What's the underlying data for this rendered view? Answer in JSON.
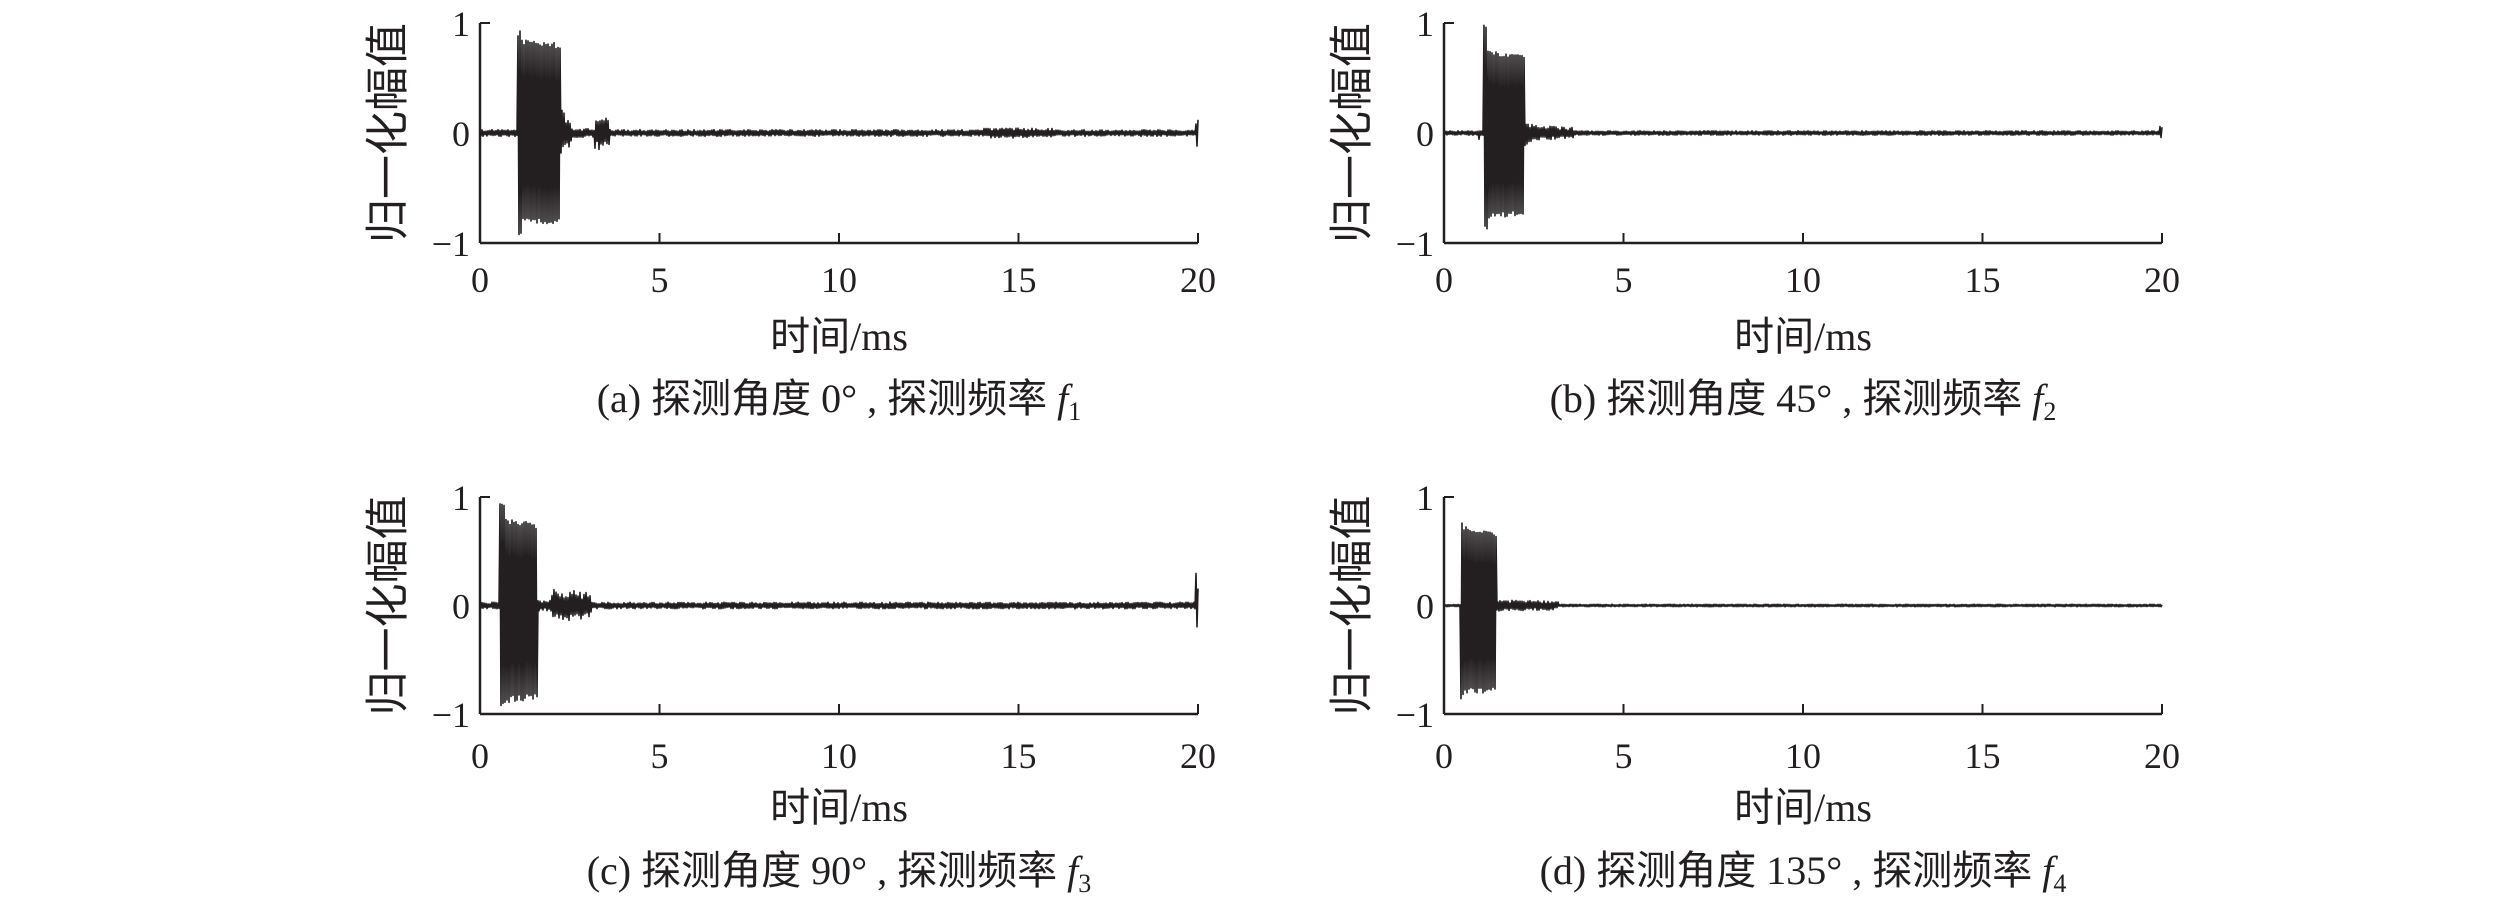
{
  "chart_data": [
    {
      "type": "line",
      "caption": {
        "text": "(a) 探测角度 0° , 探测频率 ",
        "symbol": "f",
        "subscript": "1"
      },
      "xlabel": "时间/ms",
      "ylabel": "归一化幅值",
      "xlim": [
        0,
        20
      ],
      "ylim": [
        -1,
        1
      ],
      "xticks": [
        0,
        5,
        10,
        15,
        20
      ],
      "xtick_labels": [
        "0",
        "5",
        "10",
        "15",
        "20"
      ],
      "yticks": [
        1,
        0,
        -1
      ],
      "ytick_labels": [
        "1",
        "0",
        "−1"
      ],
      "grid": false,
      "line_color": "#231f20",
      "series": [
        {
          "envelope": [
            {
              "t": [
                0,
                1.05
              ],
              "upper": [
                0.03,
                0.03
              ],
              "lower": [
                -0.03,
                -0.03
              ]
            },
            {
              "t": [
                1.05,
                1.16
              ],
              "upper": [
                0.95,
                0.92
              ],
              "lower": [
                -0.97,
                -0.9
              ]
            },
            {
              "t": [
                1.16,
                2.25
              ],
              "upper": [
                0.86,
                0.82
              ],
              "lower": [
                -0.83,
                -0.82
              ]
            },
            {
              "t": [
                2.25,
                2.55
              ],
              "upper": [
                0.22,
                0.1
              ],
              "lower": [
                -0.22,
                -0.1
              ]
            },
            {
              "t": [
                2.55,
                3.2
              ],
              "upper": [
                0.04,
                0.04
              ],
              "lower": [
                -0.04,
                -0.04
              ]
            },
            {
              "t": [
                3.2,
                3.6
              ],
              "upper": [
                0.16,
                0.14
              ],
              "lower": [
                -0.16,
                -0.14
              ]
            },
            {
              "t": [
                3.6,
                14
              ],
              "upper": [
                0.03,
                0.03
              ],
              "lower": [
                -0.03,
                -0.03
              ]
            },
            {
              "t": [
                14,
                16
              ],
              "upper": [
                0.045,
                0.045
              ],
              "lower": [
                -0.045,
                -0.045
              ]
            },
            {
              "t": [
                16,
                19.94
              ],
              "upper": [
                0.03,
                0.03
              ],
              "lower": [
                -0.03,
                -0.03
              ]
            },
            {
              "t": [
                19.94,
                20
              ],
              "upper": [
                0.15,
                0.15
              ],
              "lower": [
                -0.15,
                -0.15
              ]
            }
          ]
        }
      ]
    },
    {
      "type": "line",
      "caption": {
        "text": "(b) 探测角度 45° , 探测频率 ",
        "symbol": "f",
        "subscript": "2"
      },
      "xlabel": "时间/ms",
      "ylabel": "归一化幅值",
      "xlim": [
        0,
        20
      ],
      "ylim": [
        -1,
        1
      ],
      "xticks": [
        0,
        5,
        10,
        15,
        20
      ],
      "xtick_labels": [
        "0",
        "5",
        "10",
        "15",
        "20"
      ],
      "yticks": [
        1,
        0,
        -1
      ],
      "ytick_labels": [
        "1",
        "0",
        "−1"
      ],
      "grid": false,
      "line_color": "#231f20",
      "series": [
        {
          "envelope": [
            {
              "t": [
                0,
                0.95
              ],
              "upper": [
                0.02,
                0.02
              ],
              "lower": [
                -0.02,
                -0.02
              ]
            },
            {
              "t": [
                0.95,
                1.0
              ],
              "upper": [
                0.08,
                0.08
              ],
              "lower": [
                -0.08,
                -0.08
              ]
            },
            {
              "t": [
                1.0,
                1.1
              ],
              "upper": [
                0.02,
                0.02
              ],
              "lower": [
                -0.02,
                -0.02
              ]
            },
            {
              "t": [
                1.1,
                1.2
              ],
              "upper": [
                1.0,
                0.95
              ],
              "lower": [
                -0.9,
                -0.88
              ]
            },
            {
              "t": [
                1.2,
                2.25
              ],
              "upper": [
                0.75,
                0.72
              ],
              "lower": [
                -0.78,
                -0.75
              ]
            },
            {
              "t": [
                2.25,
                2.5
              ],
              "upper": [
                0.12,
                0.08
              ],
              "lower": [
                -0.12,
                -0.08
              ]
            },
            {
              "t": [
                2.5,
                3.6
              ],
              "upper": [
                0.07,
                0.05
              ],
              "lower": [
                -0.07,
                -0.05
              ]
            },
            {
              "t": [
                3.6,
                19.94
              ],
              "upper": [
                0.02,
                0.02
              ],
              "lower": [
                -0.02,
                -0.02
              ]
            },
            {
              "t": [
                19.94,
                20
              ],
              "upper": [
                0.06,
                0.06
              ],
              "lower": [
                -0.06,
                -0.06
              ]
            }
          ]
        }
      ]
    },
    {
      "type": "line",
      "caption": {
        "text": "(c) 探测角度 90° , 探测频率 ",
        "symbol": "f",
        "subscript": "3"
      },
      "xlabel": "时间/ms",
      "ylabel": "归一化幅值",
      "xlim": [
        0,
        20
      ],
      "ylim": [
        -1,
        1
      ],
      "xticks": [
        0,
        5,
        10,
        15,
        20
      ],
      "xtick_labels": [
        "0",
        "5",
        "10",
        "15",
        "20"
      ],
      "yticks": [
        1,
        0,
        -1
      ],
      "ytick_labels": [
        "1",
        "0",
        "−1"
      ],
      "grid": false,
      "line_color": "#231f20",
      "series": [
        {
          "envelope": [
            {
              "t": [
                0,
                0.55
              ],
              "upper": [
                0.03,
                0.03
              ],
              "lower": [
                -0.03,
                -0.03
              ]
            },
            {
              "t": [
                0.55,
                0.68
              ],
              "upper": [
                0.98,
                0.95
              ],
              "lower": [
                -0.97,
                -0.92
              ]
            },
            {
              "t": [
                0.68,
                1.6
              ],
              "upper": [
                0.8,
                0.76
              ],
              "lower": [
                -0.9,
                -0.86
              ]
            },
            {
              "t": [
                1.6,
                2.0
              ],
              "upper": [
                0.05,
                0.05
              ],
              "lower": [
                -0.05,
                -0.05
              ]
            },
            {
              "t": [
                2.0,
                3.1
              ],
              "upper": [
                0.16,
                0.12
              ],
              "lower": [
                -0.16,
                -0.12
              ]
            },
            {
              "t": [
                3.1,
                19.94
              ],
              "upper": [
                0.03,
                0.03
              ],
              "lower": [
                -0.03,
                -0.03
              ]
            },
            {
              "t": [
                19.94,
                20
              ],
              "upper": [
                0.3,
                0.3
              ],
              "lower": [
                -0.2,
                -0.2
              ]
            }
          ]
        }
      ]
    },
    {
      "type": "line",
      "caption": {
        "text": "(d) 探测角度 135° , 探测频率 ",
        "symbol": "f",
        "subscript": "4"
      },
      "xlabel": "时间/ms",
      "ylabel": "归一化幅值",
      "xlim": [
        0,
        20
      ],
      "ylim": [
        -1,
        1
      ],
      "xticks": [
        0,
        5,
        10,
        15,
        20
      ],
      "xtick_labels": [
        "0",
        "5",
        "10",
        "15",
        "20"
      ],
      "yticks": [
        1,
        0,
        -1
      ],
      "ytick_labels": [
        "1",
        "0",
        "−1"
      ],
      "grid": false,
      "line_color": "#231f20",
      "series": [
        {
          "envelope": [
            {
              "t": [
                0,
                0.45
              ],
              "upper": [
                0.012,
                0.012
              ],
              "lower": [
                -0.012,
                -0.012
              ]
            },
            {
              "t": [
                0.45,
                0.55
              ],
              "upper": [
                0.82,
                0.8
              ],
              "lower": [
                -0.88,
                -0.85
              ]
            },
            {
              "t": [
                0.55,
                1.45
              ],
              "upper": [
                0.73,
                0.68
              ],
              "lower": [
                -0.82,
                -0.8
              ]
            },
            {
              "t": [
                1.45,
                1.8
              ],
              "upper": [
                0.06,
                0.04
              ],
              "lower": [
                -0.06,
                -0.04
              ]
            },
            {
              "t": [
                1.8,
                3.2
              ],
              "upper": [
                0.05,
                0.04
              ],
              "lower": [
                -0.05,
                -0.04
              ]
            },
            {
              "t": [
                3.2,
                20
              ],
              "upper": [
                0.012,
                0.012
              ],
              "lower": [
                -0.012,
                -0.012
              ]
            }
          ]
        }
      ]
    }
  ]
}
